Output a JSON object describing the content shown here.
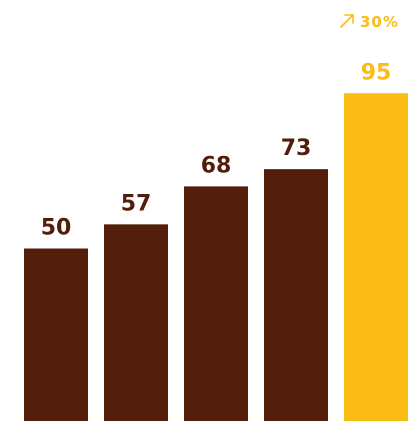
{
  "chart_data": {
    "type": "bar",
    "categories": [
      "",
      "",
      "",
      "",
      ""
    ],
    "values": [
      50,
      57,
      68,
      73,
      95
    ],
    "labels": [
      "50",
      "57",
      "68",
      "73",
      "95"
    ],
    "title": "",
    "xlabel": "",
    "ylabel": "",
    "ylim": [
      0,
      100
    ],
    "grid": false,
    "legend": "none",
    "highlight_index": 4,
    "annotation": {
      "text": "30%",
      "icon": "arrow-up-right-icon"
    },
    "colors": {
      "bar": "#521d0b",
      "highlight": "#fbbd15",
      "label": "#521d0b",
      "highlight_label": "#fbbd15"
    }
  }
}
